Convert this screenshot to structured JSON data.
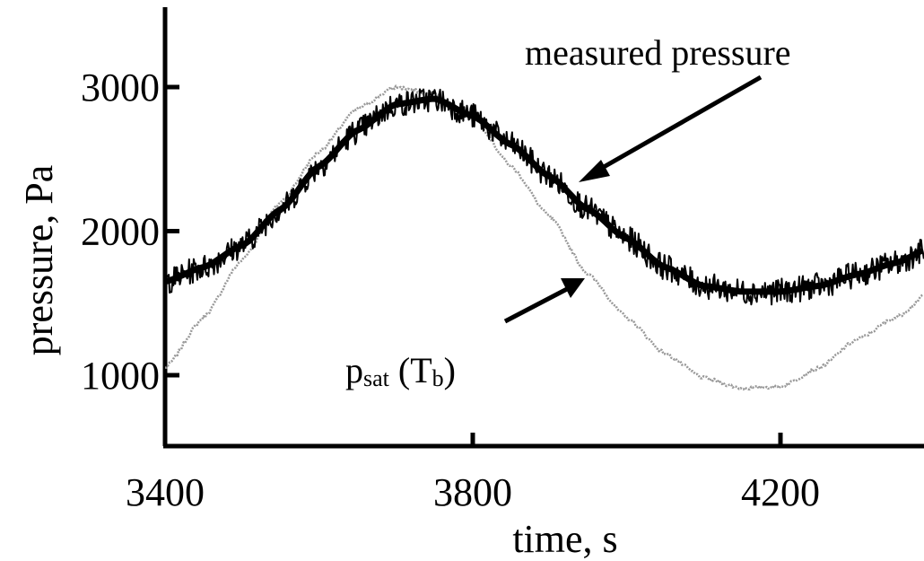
{
  "chart_data": {
    "type": "line",
    "title": "",
    "xlabel": "time, s",
    "ylabel": "pressure, Pa",
    "xlim": [
      3400,
      4450
    ],
    "ylim": [
      500,
      3500
    ],
    "xticks": [
      3400,
      3800,
      4200
    ],
    "xtick_labels": [
      "3400",
      "3800",
      "4200"
    ],
    "yticks": [
      1000,
      2000,
      3000
    ],
    "ytick_labels": [
      "1000",
      "2000",
      "3000"
    ],
    "grid": false,
    "legend": "none",
    "series": [
      {
        "name": "measured pressure",
        "color": "#000000",
        "style": "solid-noisy",
        "x": [
          3400,
          3450,
          3500,
          3550,
          3600,
          3650,
          3700,
          3750,
          3800,
          3850,
          3900,
          3950,
          4000,
          4050,
          4100,
          4150,
          4200,
          4250,
          4300,
          4350,
          4400,
          4450
        ],
        "y": [
          1650,
          1750,
          1900,
          2150,
          2450,
          2700,
          2880,
          2920,
          2800,
          2600,
          2380,
          2150,
          1950,
          1750,
          1620,
          1580,
          1580,
          1620,
          1700,
          1780,
          1900,
          1950
        ]
      },
      {
        "name": "psat (Tb)",
        "color": "#999999",
        "style": "dotted",
        "x": [
          3400,
          3450,
          3500,
          3550,
          3600,
          3650,
          3700,
          3750,
          3800,
          3850,
          3900,
          3950,
          4000,
          4050,
          4100,
          4150,
          4200,
          4250,
          4300,
          4350,
          4400,
          4450
        ],
        "y": [
          1050,
          1400,
          1800,
          2200,
          2550,
          2850,
          3000,
          2950,
          2800,
          2450,
          2100,
          1700,
          1400,
          1150,
          980,
          910,
          920,
          1050,
          1250,
          1400,
          1600,
          1800
        ]
      }
    ],
    "annotations": [
      {
        "id": "measured",
        "text": "measured pressure",
        "x_data": 3950,
        "y_data": 2350
      },
      {
        "id": "psat",
        "text_main": "p",
        "text_sub": "sat",
        "text_tail": " (T",
        "text_sub2": "b",
        "text_end": ")",
        "x_data": 3950,
        "y_data": 1700
      }
    ]
  }
}
